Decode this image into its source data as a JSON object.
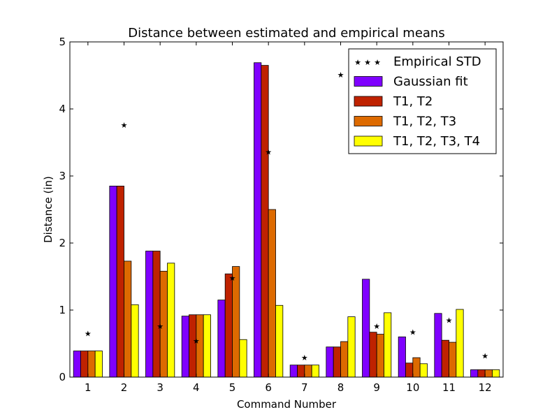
{
  "chart_data": {
    "type": "bar",
    "title": "Distance between estimated and empirical means",
    "xlabel": "Command Number",
    "ylabel": "Distance (in)",
    "ylim": [
      0,
      5
    ],
    "yticks": [
      "0",
      "1",
      "2",
      "3",
      "4",
      "5"
    ],
    "categories": [
      "1",
      "2",
      "3",
      "4",
      "5",
      "6",
      "7",
      "8",
      "9",
      "10",
      "11",
      "12"
    ],
    "series": [
      {
        "name": "Gaussian fit",
        "color": "#7f00ff",
        "values": [
          0.39,
          2.85,
          1.88,
          0.91,
          1.15,
          4.69,
          0.18,
          0.45,
          1.46,
          0.6,
          0.95,
          0.11
        ]
      },
      {
        "name": "T1, T2",
        "color": "#bf2200",
        "values": [
          0.39,
          2.85,
          1.88,
          0.93,
          1.54,
          4.65,
          0.18,
          0.45,
          0.67,
          0.21,
          0.55,
          0.11
        ]
      },
      {
        "name": "T1, T2, T3",
        "color": "#dd6a00",
        "values": [
          0.39,
          1.73,
          1.58,
          0.93,
          1.65,
          2.5,
          0.18,
          0.53,
          0.64,
          0.29,
          0.52,
          0.11
        ]
      },
      {
        "name": "T1, T2, T3, T4",
        "color": "#ffff00",
        "values": [
          0.39,
          1.08,
          1.7,
          0.93,
          0.56,
          1.07,
          0.18,
          0.9,
          0.96,
          0.2,
          1.01,
          0.11
        ]
      }
    ],
    "markers": {
      "name": "Empirical STD",
      "symbol": "★",
      "color": "#000000",
      "values": [
        0.65,
        3.76,
        0.76,
        0.54,
        1.48,
        3.36,
        0.29,
        4.51,
        0.76,
        0.67,
        0.85,
        0.32
      ]
    },
    "legend": {
      "position": "top-right"
    },
    "grid": false
  }
}
